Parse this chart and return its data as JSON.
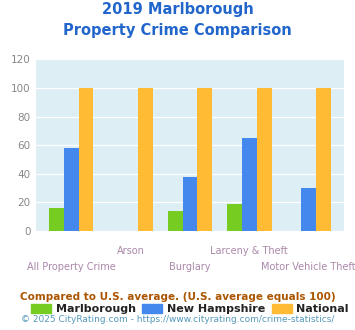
{
  "title_line1": "2019 Marlborough",
  "title_line2": "Property Crime Comparison",
  "categories": [
    "All Property Crime",
    "Arson",
    "Burglary",
    "Larceny & Theft",
    "Motor Vehicle Theft"
  ],
  "series": {
    "Marlborough": [
      16,
      0,
      14,
      19,
      0
    ],
    "New Hampshire": [
      58,
      0,
      38,
      65,
      30
    ],
    "National": [
      100,
      100,
      100,
      100,
      100
    ]
  },
  "colors": {
    "Marlborough": "#77cc22",
    "New Hampshire": "#4488ee",
    "National": "#ffbb33"
  },
  "ylim": [
    0,
    120
  ],
  "yticks": [
    0,
    20,
    40,
    60,
    80,
    100,
    120
  ],
  "bar_width": 0.25,
  "title_color": "#2266cc",
  "title_fontsize": 10.5,
  "axis_label_color": "#aa88aa",
  "axis_label_fontsize": 7.0,
  "tick_color": "#888888",
  "tick_fontsize": 7.5,
  "legend_fontsize": 8.0,
  "footnote1": "Compared to U.S. average. (U.S. average equals 100)",
  "footnote2": "© 2025 CityRating.com - https://www.cityrating.com/crime-statistics/",
  "footnote1_color": "#aa5500",
  "footnote2_color": "#5599bb",
  "footnote1_fontsize": 7.5,
  "footnote2_fontsize": 6.5,
  "bg_color": "#ddeef5",
  "fig_bg_color": "#ffffff"
}
